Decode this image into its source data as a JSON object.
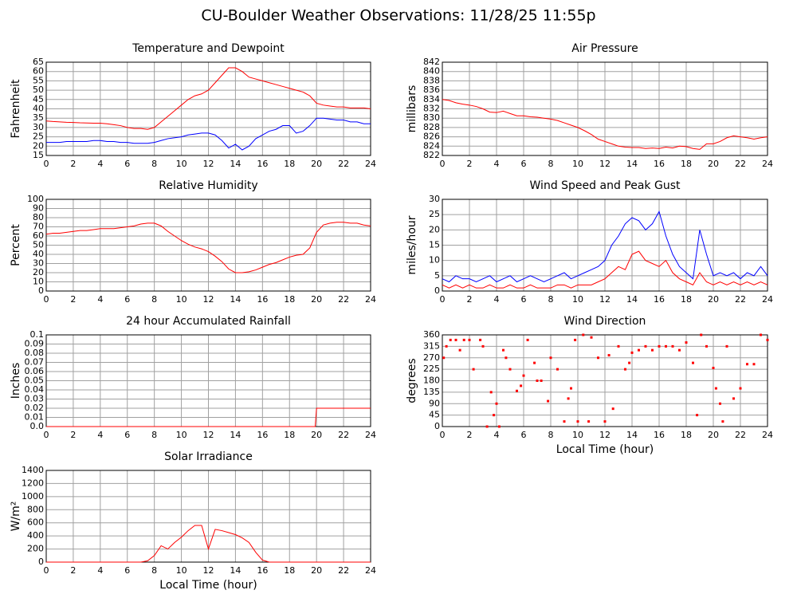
{
  "title": "CU-Boulder Weather Observations: 11/28/25 11:55p",
  "chart_data": [
    {
      "type": "line",
      "title": "Temperature and Dewpoint",
      "ylabel": "Fahrenheit",
      "x": [
        0,
        0.5,
        1,
        1.5,
        2,
        2.5,
        3,
        3.5,
        4,
        4.5,
        5,
        5.5,
        6,
        6.5,
        7,
        7.5,
        8,
        8.5,
        9,
        9.5,
        10,
        10.5,
        11,
        11.5,
        12,
        12.5,
        13,
        13.5,
        14,
        14.5,
        15,
        15.5,
        16,
        16.5,
        17,
        17.5,
        18,
        18.5,
        19,
        19.5,
        20,
        20.5,
        21,
        21.5,
        22,
        22.5,
        23,
        23.5,
        24
      ],
      "series": [
        {
          "color": "#ff0000",
          "values": [
            33.5,
            33.2,
            33,
            32.8,
            32.7,
            32.5,
            32.4,
            32.3,
            32.3,
            32,
            31.5,
            31,
            30,
            29.5,
            29.5,
            29,
            30,
            33,
            36,
            39,
            42,
            45,
            47,
            48,
            50,
            54,
            58,
            62,
            62,
            60,
            57,
            56,
            55,
            54,
            53,
            52,
            51,
            50,
            49,
            47,
            43,
            42,
            41.5,
            41,
            41,
            40.5,
            40.5,
            40.5,
            40
          ]
        },
        {
          "color": "#0000ff",
          "values": [
            22,
            22,
            22,
            22.5,
            22.5,
            22.5,
            22.5,
            23,
            23,
            22.5,
            22.5,
            22,
            22,
            21.5,
            21.5,
            21.5,
            22,
            23,
            24,
            24.5,
            25,
            26,
            26.5,
            27,
            27,
            26,
            23,
            19,
            21,
            18,
            20,
            24,
            26,
            28,
            29,
            31,
            31,
            27,
            28,
            31,
            35,
            35,
            34.5,
            34,
            34,
            33,
            33,
            32,
            32
          ]
        }
      ],
      "xlim": [
        0,
        24
      ],
      "xticks": [
        0,
        2,
        4,
        6,
        8,
        10,
        12,
        14,
        16,
        18,
        20,
        22,
        24
      ],
      "ylim": [
        15,
        65
      ],
      "yticks": [
        15,
        20,
        25,
        30,
        35,
        40,
        45,
        50,
        55,
        60,
        65
      ],
      "grid": true
    },
    {
      "type": "line",
      "title": "Air Pressure",
      "ylabel": "millibars",
      "x": [
        0,
        0.5,
        1,
        1.5,
        2,
        2.5,
        3,
        3.5,
        4,
        4.5,
        5,
        5.5,
        6,
        6.5,
        7,
        7.5,
        8,
        8.5,
        9,
        9.5,
        10,
        10.5,
        11,
        11.5,
        12,
        12.5,
        13,
        13.5,
        14,
        14.5,
        15,
        15.5,
        16,
        16.5,
        17,
        17.5,
        18,
        18.5,
        19,
        19.5,
        20,
        20.5,
        21,
        21.5,
        22,
        22.5,
        23,
        23.5,
        24
      ],
      "series": [
        {
          "color": "#ff0000",
          "values": [
            834,
            833.8,
            833.3,
            833,
            832.8,
            832.5,
            832,
            831.3,
            831.2,
            831.5,
            831,
            830.5,
            830.5,
            830.3,
            830.2,
            830,
            829.8,
            829.5,
            829,
            828.5,
            828,
            827.3,
            826.5,
            825.5,
            825,
            824.5,
            824,
            823.8,
            823.7,
            823.7,
            823.5,
            823.6,
            823.5,
            823.8,
            823.6,
            824,
            823.9,
            823.5,
            823.3,
            824.5,
            824.5,
            825,
            825.8,
            826.2,
            826,
            825.8,
            825.5,
            825.8,
            826
          ]
        }
      ],
      "xlim": [
        0,
        24
      ],
      "xticks": [
        0,
        2,
        4,
        6,
        8,
        10,
        12,
        14,
        16,
        18,
        20,
        22,
        24
      ],
      "ylim": [
        822,
        842
      ],
      "yticks": [
        822,
        824,
        826,
        828,
        830,
        832,
        834,
        836,
        838,
        840,
        842
      ],
      "grid": true
    },
    {
      "type": "line",
      "title": "Relative Humidity",
      "ylabel": "Percent",
      "x": [
        0,
        0.5,
        1,
        1.5,
        2,
        2.5,
        3,
        3.5,
        4,
        4.5,
        5,
        5.5,
        6,
        6.5,
        7,
        7.5,
        8,
        8.5,
        9,
        9.5,
        10,
        10.5,
        11,
        11.5,
        12,
        12.5,
        13,
        13.5,
        14,
        14.5,
        15,
        15.5,
        16,
        16.5,
        17,
        17.5,
        18,
        18.5,
        19,
        19.5,
        20,
        20.5,
        21,
        21.5,
        22,
        22.5,
        23,
        23.5,
        24
      ],
      "series": [
        {
          "color": "#ff0000",
          "values": [
            62,
            63,
            63,
            64,
            65,
            66,
            66,
            67,
            68,
            68,
            68,
            69,
            70,
            71,
            73,
            74,
            74,
            71,
            65,
            60,
            55,
            51,
            48,
            46,
            43,
            38,
            32,
            24,
            20,
            20,
            21,
            23,
            26,
            29,
            31,
            34,
            37,
            39,
            40,
            47,
            64,
            72,
            74,
            75,
            75,
            74,
            74,
            72,
            71
          ]
        }
      ],
      "xlim": [
        0,
        24
      ],
      "xticks": [
        0,
        2,
        4,
        6,
        8,
        10,
        12,
        14,
        16,
        18,
        20,
        22,
        24
      ],
      "ylim": [
        0,
        100
      ],
      "yticks": [
        0,
        10,
        20,
        30,
        40,
        50,
        60,
        70,
        80,
        90,
        100
      ],
      "grid": true
    },
    {
      "type": "line",
      "title": "Wind Speed and Peak Gust",
      "ylabel": "miles/hour",
      "x": [
        0,
        0.5,
        1,
        1.5,
        2,
        2.5,
        3,
        3.5,
        4,
        4.5,
        5,
        5.5,
        6,
        6.5,
        7,
        7.5,
        8,
        8.5,
        9,
        9.5,
        10,
        10.5,
        11,
        11.5,
        12,
        12.5,
        13,
        13.5,
        14,
        14.5,
        15,
        15.5,
        16,
        16.5,
        17,
        17.5,
        18,
        18.5,
        19,
        19.5,
        20,
        20.5,
        21,
        21.5,
        22,
        22.5,
        23,
        23.5,
        24
      ],
      "series": [
        {
          "color": "#0000ff",
          "values": [
            4,
            3,
            5,
            4,
            4,
            3,
            4,
            5,
            3,
            4,
            5,
            3,
            4,
            5,
            4,
            3,
            4,
            5,
            6,
            4,
            5,
            6,
            7,
            8,
            10,
            15,
            18,
            22,
            24,
            23,
            20,
            22,
            26,
            18,
            12,
            8,
            6,
            4,
            20,
            12,
            5,
            6,
            5,
            6,
            4,
            6,
            5,
            8,
            5
          ]
        },
        {
          "color": "#ff0000",
          "values": [
            2,
            1,
            2,
            1,
            2,
            1,
            1,
            2,
            1,
            1,
            2,
            1,
            1,
            2,
            1,
            1,
            1,
            2,
            2,
            1,
            2,
            2,
            2,
            3,
            4,
            6,
            8,
            7,
            12,
            13,
            10,
            9,
            8,
            10,
            6,
            4,
            3,
            2,
            6,
            3,
            2,
            3,
            2,
            3,
            2,
            3,
            2,
            3,
            2
          ]
        }
      ],
      "xlim": [
        0,
        24
      ],
      "xticks": [
        0,
        2,
        4,
        6,
        8,
        10,
        12,
        14,
        16,
        18,
        20,
        22,
        24
      ],
      "ylim": [
        0,
        30
      ],
      "yticks": [
        0,
        5,
        10,
        15,
        20,
        25,
        30
      ],
      "grid": true
    },
    {
      "type": "line",
      "title": "24 hour Accumulated Rainfall",
      "ylabel": "Inches",
      "x": [
        0,
        19.9,
        20,
        24
      ],
      "series": [
        {
          "color": "#ff0000",
          "values": [
            0,
            0,
            0.02,
            0.02
          ]
        }
      ],
      "xlim": [
        0,
        24
      ],
      "xticks": [
        0,
        2,
        4,
        6,
        8,
        10,
        12,
        14,
        16,
        18,
        20,
        22,
        24
      ],
      "ylim": [
        0,
        0.1
      ],
      "yticks": [
        {
          "value": 0,
          "label": "0.0"
        },
        0.01,
        0.02,
        0.03,
        0.04,
        0.05,
        0.06,
        0.07,
        0.08,
        0.09,
        0.1
      ],
      "grid": true
    },
    {
      "type": "scatter",
      "title": "Wind Direction",
      "ylabel": "degrees",
      "xlabel": "Local Time (hour)",
      "x": [
        0.1,
        0.3,
        0.6,
        1.0,
        1.3,
        1.6,
        2.0,
        2.3,
        2.8,
        3.0,
        3.3,
        3.6,
        3.8,
        4.0,
        4.2,
        4.5,
        4.7,
        5.0,
        5.5,
        5.8,
        6.0,
        6.3,
        6.8,
        7.0,
        7.3,
        7.8,
        8.0,
        8.5,
        9.0,
        9.3,
        9.5,
        9.8,
        10.0,
        10.4,
        10.8,
        11.0,
        11.5,
        12.0,
        12.3,
        12.6,
        13.0,
        13.5,
        13.8,
        14.0,
        14.5,
        15.0,
        15.5,
        16.0,
        16.5,
        17.0,
        17.5,
        18.0,
        18.5,
        18.8,
        19.1,
        19.5,
        20.0,
        20.2,
        20.5,
        20.7,
        21.0,
        21.5,
        22.0,
        22.5,
        23.0,
        23.5,
        24.0
      ],
      "series": [
        {
          "color": "#ff0000",
          "values": [
            270,
            315,
            340,
            340,
            300,
            340,
            340,
            225,
            340,
            315,
            0,
            135,
            45,
            90,
            0,
            300,
            270,
            225,
            140,
            160,
            200,
            340,
            250,
            180,
            180,
            100,
            270,
            225,
            20,
            110,
            150,
            340,
            20,
            360,
            20,
            350,
            270,
            20,
            280,
            70,
            315,
            225,
            250,
            290,
            300,
            315,
            300,
            315,
            315,
            315,
            300,
            330,
            250,
            45,
            360,
            315,
            230,
            150,
            90,
            20,
            315,
            110,
            150,
            245,
            245,
            360,
            340
          ]
        }
      ],
      "xlim": [
        0,
        24
      ],
      "xticks": [
        0,
        2,
        4,
        6,
        8,
        10,
        12,
        14,
        16,
        18,
        20,
        22,
        24
      ],
      "ylim": [
        0,
        360
      ],
      "yticks": [
        0,
        45,
        90,
        135,
        180,
        225,
        270,
        315,
        360
      ],
      "grid": true
    },
    {
      "type": "line",
      "title": "Solar Irradiance",
      "ylabel": "W/m²",
      "xlabel": "Local Time (hour)",
      "x": [
        0,
        0.5,
        1,
        1.5,
        2,
        2.5,
        3,
        3.5,
        4,
        4.5,
        5,
        5.5,
        6,
        6.5,
        7,
        7.5,
        8,
        8.5,
        9,
        9.5,
        10,
        10.5,
        11,
        11.5,
        12,
        12.5,
        13,
        13.5,
        14,
        14.5,
        15,
        15.5,
        16,
        16.5,
        17,
        17.5,
        18,
        18.5,
        19,
        19.5,
        20,
        20.5,
        21,
        21.5,
        22,
        22.5,
        23,
        23.5,
        24
      ],
      "series": [
        {
          "color": "#ff0000",
          "values": [
            0,
            0,
            0,
            0,
            0,
            0,
            0,
            0,
            0,
            0,
            0,
            0,
            0,
            0,
            0,
            20,
            100,
            250,
            200,
            300,
            380,
            480,
            560,
            560,
            200,
            500,
            480,
            450,
            420,
            370,
            300,
            150,
            30,
            0,
            0,
            0,
            0,
            0,
            0,
            0,
            0,
            0,
            0,
            0,
            0,
            0,
            0,
            0,
            0
          ]
        }
      ],
      "xlim": [
        0,
        24
      ],
      "xticks": [
        0,
        2,
        4,
        6,
        8,
        10,
        12,
        14,
        16,
        18,
        20,
        22,
        24
      ],
      "ylim": [
        0,
        1400
      ],
      "yticks": [
        0,
        200,
        400,
        600,
        800,
        1000,
        1200,
        1400
      ],
      "grid": true
    }
  ]
}
